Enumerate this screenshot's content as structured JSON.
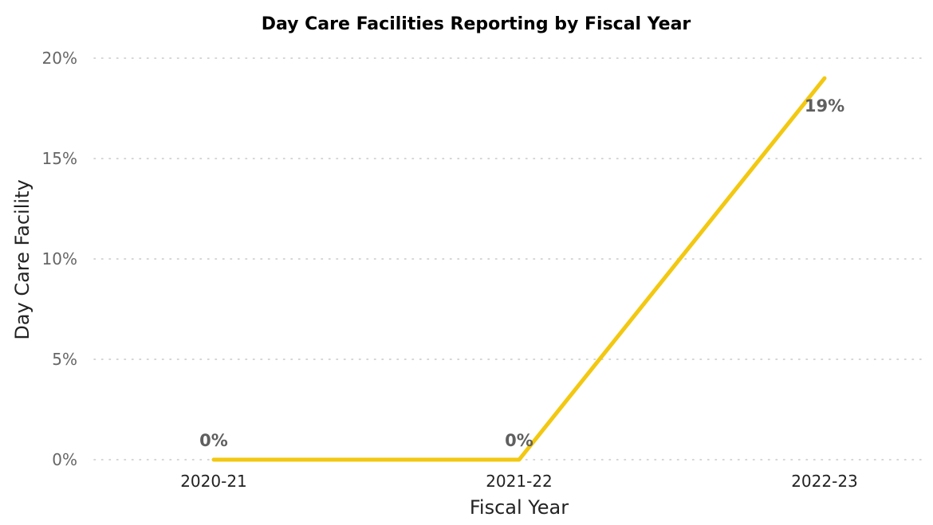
{
  "chart_data": {
    "type": "line",
    "title": "Day Care Facilities Reporting by Fiscal Year",
    "xlabel": "Fiscal Year",
    "ylabel": "Day Care Facility",
    "categories": [
      "2020-21",
      "2021-22",
      "2022-23"
    ],
    "series": [
      {
        "values": [
          0,
          0,
          19
        ],
        "data_labels": [
          "0%",
          "0%",
          "19%"
        ],
        "color": "#F2C811"
      }
    ],
    "ylim": [
      0,
      20
    ],
    "yticks": [
      0,
      5,
      10,
      15,
      20
    ],
    "ytick_labels": [
      "0%",
      "5%",
      "10%",
      "15%",
      "20%"
    ],
    "grid": true,
    "grid_style": "dotted",
    "legend": "none"
  }
}
